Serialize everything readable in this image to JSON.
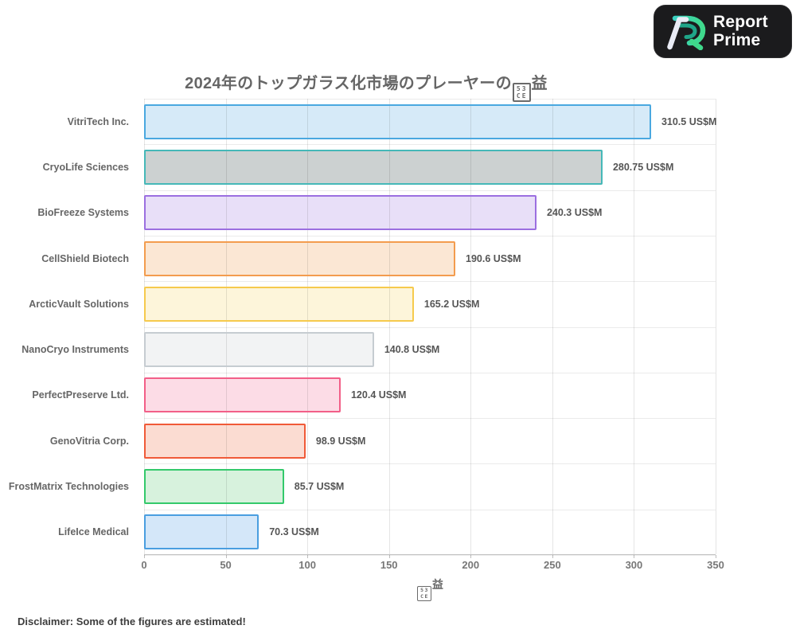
{
  "logo": {
    "brand_line1": "Report",
    "brand_line2": "Prime"
  },
  "title": {
    "prefix": "2024年のトップガラス化市場のプレーヤーの",
    "missing_glyph_top": "53",
    "missing_glyph_bottom": "CE",
    "suffix": "益"
  },
  "chart_data": {
    "type": "bar",
    "orientation": "horizontal",
    "title": "2024年のトップガラス化市場のプレーヤーの収益",
    "categories": [
      "VitriTech Inc.",
      "CryoLife Sciences",
      "BioFreeze Systems",
      "CellShield Biotech",
      "ArcticVault Solutions",
      "NanoCryo Instruments",
      "PerfectPreserve Ltd.",
      "GenoVitria Corp.",
      "FrostMatrix Technologies",
      "LifeIce Medical"
    ],
    "values": [
      310.5,
      280.75,
      240.3,
      190.6,
      165.2,
      140.8,
      120.4,
      98.9,
      85.7,
      70.3
    ],
    "unit": "US$M",
    "xlabel": "収益",
    "xlabel_missing_glyph_top": "53",
    "xlabel_missing_glyph_bottom": "CE",
    "xlabel_suffix": "益",
    "xlim": [
      0,
      350
    ],
    "xticks": [
      0,
      50,
      100,
      150,
      200,
      250,
      300,
      350
    ],
    "grid": true,
    "legend": false,
    "bar_colors": [
      {
        "fill": "#d6eaf8",
        "border": "#4aa8e0"
      },
      {
        "fill": "#ccd1d1",
        "border": "#45b8b8"
      },
      {
        "fill": "#e8dff8",
        "border": "#9b6fe0"
      },
      {
        "fill": "#fbe7d4",
        "border": "#f39c4e"
      },
      {
        "fill": "#fdf5da",
        "border": "#f6ca4d"
      },
      {
        "fill": "#f2f3f4",
        "border": "#c6ccd1"
      },
      {
        "fill": "#fcdce6",
        "border": "#f25f88"
      },
      {
        "fill": "#fbdcd2",
        "border": "#f05a38"
      },
      {
        "fill": "#d7f2dd",
        "border": "#33c96b"
      },
      {
        "fill": "#d4e7f9",
        "border": "#4a9ee0"
      }
    ]
  },
  "footer": {
    "disclaimer": "Disclaimer: Some of the figures are estimated!"
  }
}
